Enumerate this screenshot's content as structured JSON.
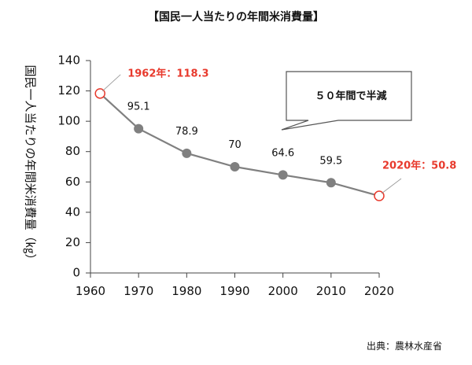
{
  "chart_data": {
    "type": "line",
    "title": "【国民一人当たりの年間米消費量】",
    "ylabel": "国民一人当たりの年間米消費量（㎏）",
    "xlabel": "",
    "xlim": [
      1960,
      2020
    ],
    "ylim": [
      0,
      140
    ],
    "x_ticks": [
      "1960",
      "1970",
      "1980",
      "1990",
      "2000",
      "2010",
      "2020"
    ],
    "y_ticks": [
      "0",
      "20",
      "40",
      "60",
      "80",
      "100",
      "120",
      "140"
    ],
    "grid": false,
    "series": [
      {
        "color": "#808080",
        "x": [
          1962,
          1970,
          1980,
          1990,
          2000,
          2010,
          2020
        ],
        "y": [
          118.3,
          95.1,
          78.9,
          70,
          64.6,
          59.5,
          50.8
        ]
      }
    ],
    "data_labels": [
      "",
      "95.1",
      "78.9",
      "70",
      "64.6",
      "59.5",
      ""
    ],
    "highlights": [
      {
        "x": 1962,
        "y": 118.3,
        "label": "1962年：118.3",
        "color": "#e83a2d"
      },
      {
        "x": 2020,
        "y": 50.8,
        "label": "2020年：50.8",
        "color": "#e83a2d"
      }
    ],
    "callout": "５０年間で半減",
    "source": "出典：農林水産省"
  }
}
